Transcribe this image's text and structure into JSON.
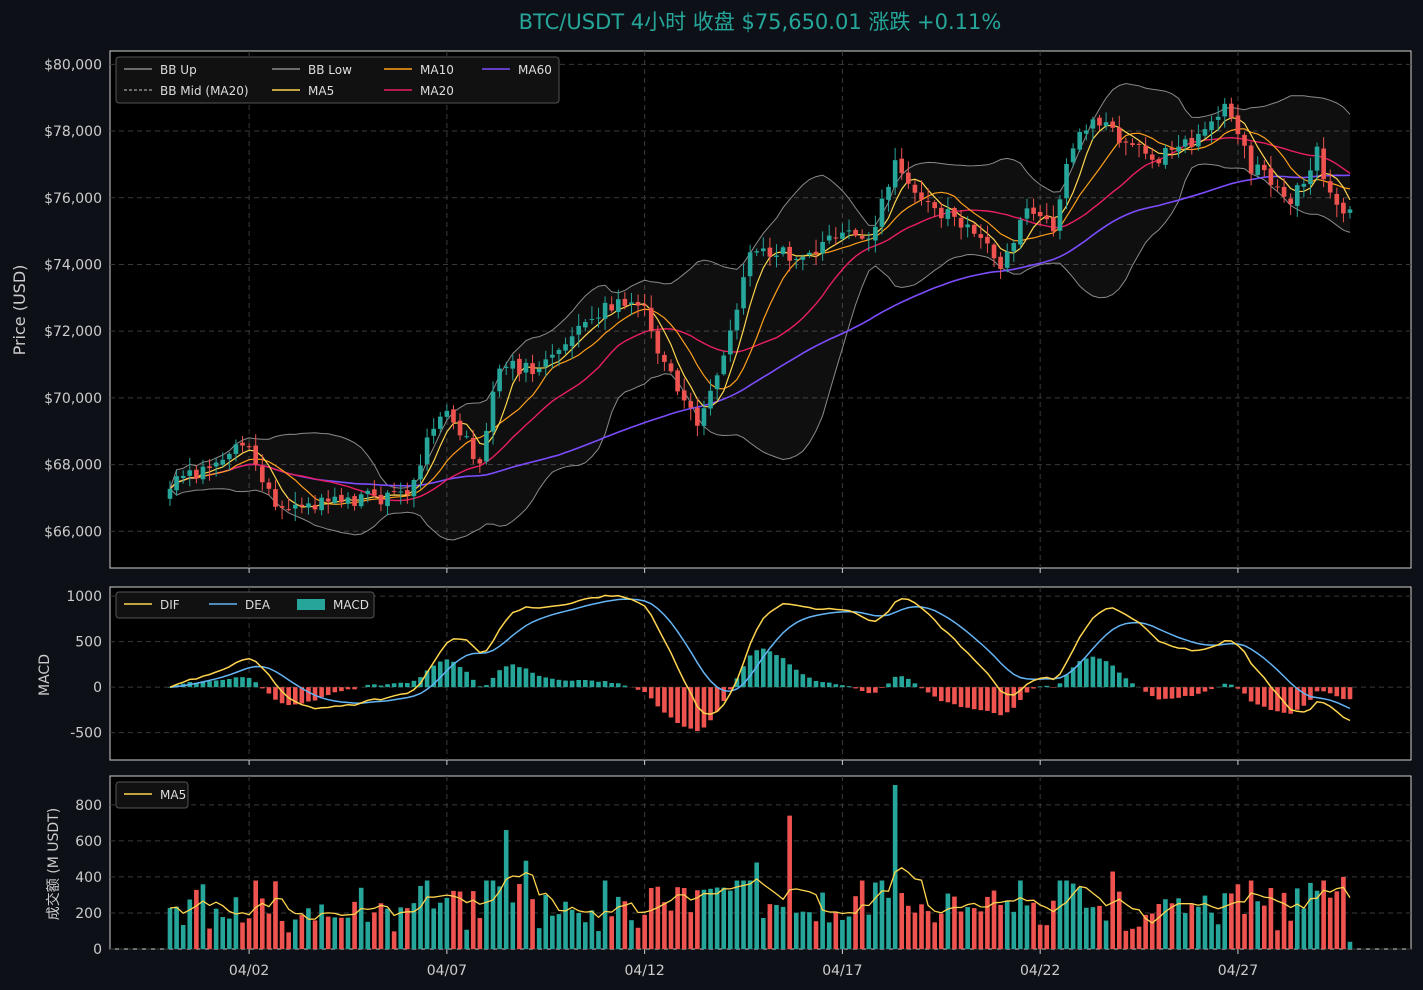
{
  "title": "BTC/USDT 4小时   收盘 $75,650.01   涨跌 +0.11%",
  "colors": {
    "background": "#0d1117",
    "panel": "#000000",
    "up": "#26a69a",
    "down": "#ef5350",
    "bb": "#8a8a8a",
    "ma5": "#ffd54f",
    "ma10": "#ff9f1c",
    "ma20": "#e91e63",
    "ma60": "#7c4dff",
    "dif": "#ffd54f",
    "dea": "#64b5f6",
    "title": "#26a69a",
    "text": "#cccccc",
    "grid": "#3a3a3a"
  },
  "chart_data": [
    {
      "type": "candlestick",
      "panel": "price",
      "ylabel": "Price (USD)",
      "ylim": [
        64900,
        80400
      ],
      "yticks": [
        66000,
        68000,
        70000,
        72000,
        74000,
        76000,
        78000,
        80000
      ],
      "ytick_labels": [
        "$66,000",
        "$68,000",
        "$70,000",
        "$72,000",
        "$74,000",
        "$76,000",
        "$78,000",
        "$80,000"
      ],
      "x_start": "03/31 00:00",
      "interval": "4h",
      "bar_count": 180,
      "xtick_labels": [
        "04/02",
        "04/07",
        "04/12",
        "04/17",
        "04/22",
        "04/27"
      ],
      "legend": [
        "BB Up",
        "BB Mid (MA20)",
        "MA5",
        "BB Low",
        "MA10",
        "MA20",
        "MA60"
      ],
      "legend_position": "top-left",
      "grid": true,
      "close_anchors": [
        {
          "bar": 0,
          "close": 67300
        },
        {
          "bar": 8,
          "close": 68200
        },
        {
          "bar": 12,
          "close": 68600
        },
        {
          "bar": 16,
          "close": 66600
        },
        {
          "bar": 20,
          "close": 66800
        },
        {
          "bar": 30,
          "close": 67000
        },
        {
          "bar": 36,
          "close": 67000
        },
        {
          "bar": 39,
          "close": 68800
        },
        {
          "bar": 42,
          "close": 69600
        },
        {
          "bar": 47,
          "close": 68100
        },
        {
          "bar": 50,
          "close": 71000
        },
        {
          "bar": 55,
          "close": 70800
        },
        {
          "bar": 60,
          "close": 71500
        },
        {
          "bar": 66,
          "close": 72800
        },
        {
          "bar": 72,
          "close": 72900
        },
        {
          "bar": 75,
          "close": 70900
        },
        {
          "bar": 80,
          "close": 69300
        },
        {
          "bar": 84,
          "close": 71100
        },
        {
          "bar": 88,
          "close": 74500
        },
        {
          "bar": 96,
          "close": 74300
        },
        {
          "bar": 102,
          "close": 74800
        },
        {
          "bar": 106,
          "close": 74700
        },
        {
          "bar": 110,
          "close": 77000
        },
        {
          "bar": 114,
          "close": 75800
        },
        {
          "bar": 118,
          "close": 75500
        },
        {
          "bar": 122,
          "close": 74900
        },
        {
          "bar": 126,
          "close": 74000
        },
        {
          "bar": 130,
          "close": 75600
        },
        {
          "bar": 134,
          "close": 75200
        },
        {
          "bar": 137,
          "close": 77600
        },
        {
          "bar": 140,
          "close": 78400
        },
        {
          "bar": 145,
          "close": 77600
        },
        {
          "bar": 150,
          "close": 77200
        },
        {
          "bar": 155,
          "close": 77600
        },
        {
          "bar": 160,
          "close": 78600
        },
        {
          "bar": 164,
          "close": 76900
        },
        {
          "bar": 170,
          "close": 76000
        },
        {
          "bar": 174,
          "close": 77300
        },
        {
          "bar": 177,
          "close": 75800
        },
        {
          "bar": 179,
          "close": 75650.01
        }
      ]
    },
    {
      "type": "bar+line",
      "panel": "macd",
      "ylabel": "MACD",
      "ylim": [
        -800,
        1100
      ],
      "yticks": [
        -500,
        0,
        500,
        1000
      ],
      "ytick_labels": [
        "-500",
        "0",
        "500",
        "1000"
      ],
      "series": [
        {
          "name": "DIF",
          "type": "line"
        },
        {
          "name": "DEA",
          "type": "line"
        },
        {
          "name": "MACD",
          "type": "bar"
        }
      ],
      "legend_position": "top-left",
      "grid": true
    },
    {
      "type": "bar+line",
      "panel": "volume",
      "ylabel": "成交额 (M USDT)",
      "ylim": [
        0,
        960
      ],
      "yticks": [
        0,
        200,
        400,
        600,
        800
      ],
      "ytick_labels": [
        "0",
        "200",
        "400",
        "600",
        "800"
      ],
      "series": [
        {
          "name": "MA5",
          "type": "line"
        }
      ],
      "volume_spikes": [
        {
          "bar": 51,
          "value": 660
        },
        {
          "bar": 54,
          "value": 490
        },
        {
          "bar": 89,
          "value": 480
        },
        {
          "bar": 94,
          "value": 740
        },
        {
          "bar": 105,
          "value": 380
        },
        {
          "bar": 110,
          "value": 910
        },
        {
          "bar": 143,
          "value": 430
        },
        {
          "bar": 178,
          "value": 400
        }
      ],
      "legend_position": "top-left",
      "grid": true
    }
  ]
}
